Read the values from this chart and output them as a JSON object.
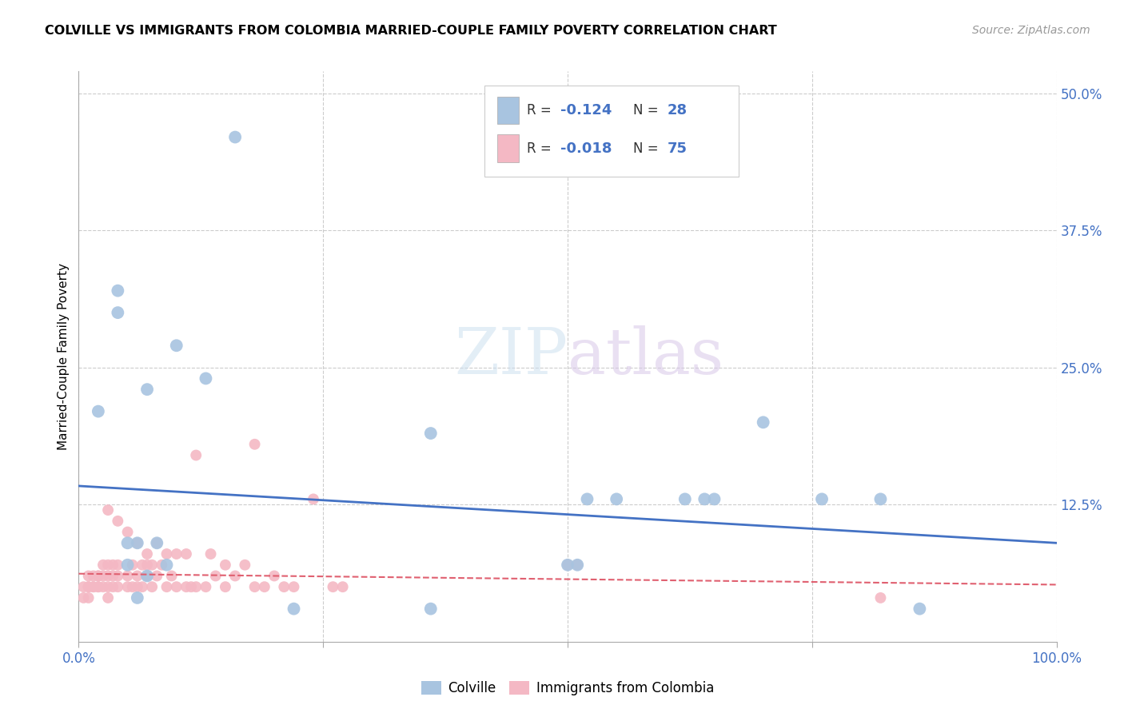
{
  "title": "COLVILLE VS IMMIGRANTS FROM COLOMBIA MARRIED-COUPLE FAMILY POVERTY CORRELATION CHART",
  "source": "Source: ZipAtlas.com",
  "ylabel": "Married-Couple Family Poverty",
  "xlim": [
    0.0,
    1.0
  ],
  "ylim": [
    0.0,
    0.52
  ],
  "xticks": [
    0.0,
    0.25,
    0.5,
    0.75,
    1.0
  ],
  "xtick_labels": [
    "0.0%",
    "",
    "",
    "",
    "100.0%"
  ],
  "yticks": [
    0.0,
    0.125,
    0.25,
    0.375,
    0.5
  ],
  "ytick_labels": [
    "",
    "12.5%",
    "25.0%",
    "37.5%",
    "50.0%"
  ],
  "colville_R": "-0.124",
  "colville_N": "28",
  "colombia_R": "-0.018",
  "colombia_N": "75",
  "colville_color": "#a8c4e0",
  "colombia_color": "#f4b8c4",
  "colville_line_color": "#4472C4",
  "colombia_line_color": "#e06070",
  "watermark_zip": "ZIP",
  "watermark_atlas": "atlas",
  "colville_x": [
    0.02,
    0.04,
    0.05,
    0.05,
    0.06,
    0.06,
    0.07,
    0.08,
    0.09,
    0.1,
    0.13,
    0.16,
    0.22,
    0.52,
    0.55,
    0.62,
    0.7,
    0.76,
    0.82,
    0.86,
    0.04,
    0.07,
    0.36,
    0.36,
    0.5,
    0.51,
    0.64,
    0.65
  ],
  "colville_y": [
    0.21,
    0.3,
    0.09,
    0.07,
    0.09,
    0.04,
    0.06,
    0.09,
    0.07,
    0.27,
    0.24,
    0.46,
    0.03,
    0.13,
    0.13,
    0.13,
    0.2,
    0.13,
    0.13,
    0.03,
    0.32,
    0.23,
    0.19,
    0.03,
    0.07,
    0.07,
    0.13,
    0.13
  ],
  "colombia_x": [
    0.005,
    0.005,
    0.01,
    0.01,
    0.01,
    0.01,
    0.015,
    0.015,
    0.015,
    0.02,
    0.02,
    0.02,
    0.02,
    0.025,
    0.025,
    0.025,
    0.03,
    0.03,
    0.03,
    0.03,
    0.03,
    0.035,
    0.035,
    0.035,
    0.04,
    0.04,
    0.04,
    0.04,
    0.05,
    0.05,
    0.05,
    0.055,
    0.055,
    0.06,
    0.06,
    0.06,
    0.065,
    0.065,
    0.07,
    0.07,
    0.07,
    0.075,
    0.075,
    0.08,
    0.08,
    0.085,
    0.09,
    0.09,
    0.095,
    0.1,
    0.1,
    0.11,
    0.11,
    0.115,
    0.12,
    0.12,
    0.13,
    0.135,
    0.14,
    0.15,
    0.15,
    0.16,
    0.17,
    0.18,
    0.18,
    0.19,
    0.2,
    0.21,
    0.22,
    0.24,
    0.26,
    0.27,
    0.5,
    0.51,
    0.82
  ],
  "colombia_y": [
    0.04,
    0.05,
    0.04,
    0.05,
    0.05,
    0.06,
    0.05,
    0.06,
    0.05,
    0.05,
    0.06,
    0.06,
    0.05,
    0.05,
    0.06,
    0.07,
    0.04,
    0.06,
    0.05,
    0.07,
    0.12,
    0.05,
    0.06,
    0.07,
    0.05,
    0.07,
    0.11,
    0.06,
    0.05,
    0.06,
    0.1,
    0.05,
    0.07,
    0.05,
    0.06,
    0.09,
    0.05,
    0.07,
    0.06,
    0.07,
    0.08,
    0.05,
    0.07,
    0.06,
    0.09,
    0.07,
    0.05,
    0.08,
    0.06,
    0.05,
    0.08,
    0.05,
    0.08,
    0.05,
    0.05,
    0.17,
    0.05,
    0.08,
    0.06,
    0.05,
    0.07,
    0.06,
    0.07,
    0.05,
    0.18,
    0.05,
    0.06,
    0.05,
    0.05,
    0.13,
    0.05,
    0.05,
    0.07,
    0.07,
    0.04
  ],
  "colville_line_x": [
    0.0,
    1.0
  ],
  "colville_line_y": [
    0.142,
    0.09
  ],
  "colombia_line_x": [
    0.0,
    1.0
  ],
  "colombia_line_y": [
    0.062,
    0.052
  ]
}
